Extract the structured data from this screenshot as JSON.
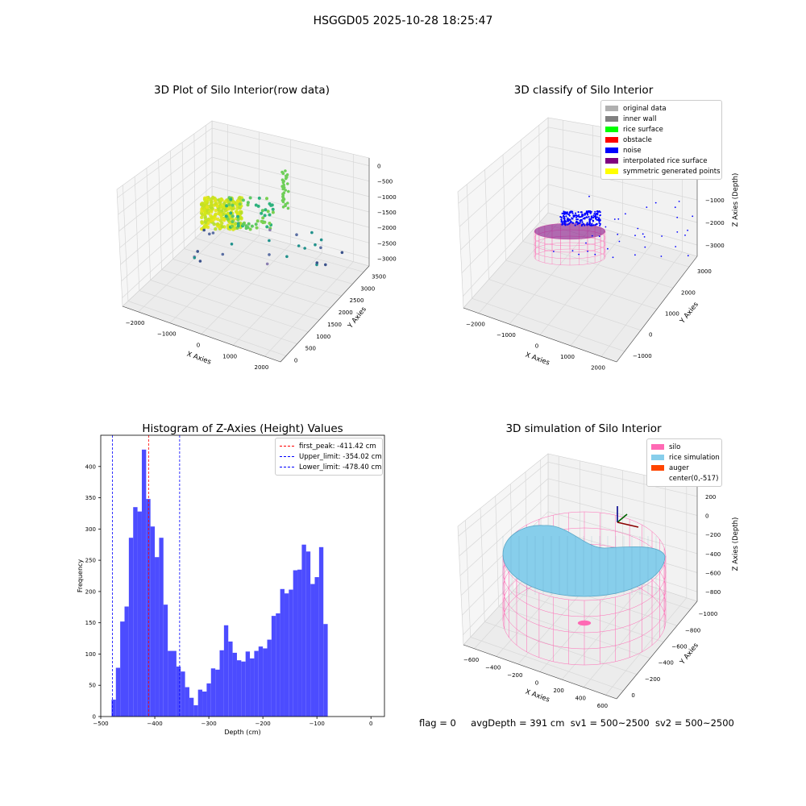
{
  "suptitle": "HSGGD05 2025-10-28 18:25:47",
  "footer": {
    "flag": "flag = 0",
    "avg_depth": "avgDepth = 391 cm",
    "sv1": "sv1 = 500~2500",
    "sv2": "sv2 = 500~2500"
  },
  "colors": {
    "histogram_bar": "#4c4cff",
    "first_peak": "#ff0000",
    "limits": "#0000ff",
    "silo": "#ff69b4",
    "rice": "#87ceeb",
    "auger": "#ff4500"
  },
  "panels": {
    "raw": {
      "title": "3D Plot of Silo Interior(row data)",
      "xlabel": "X Axies",
      "ylabel": "Y Axies",
      "zlabel": "Z Axies (Depth)",
      "xticks": [
        "−2000",
        "−1000",
        "0",
        "1000",
        "2000"
      ],
      "yticks": [
        "0",
        "500",
        "1000",
        "1500",
        "2000",
        "2500",
        "3000",
        "3500"
      ],
      "zticks": [
        "0",
        "−500",
        "−1000",
        "−1500",
        "−2000",
        "−2500",
        "−3000"
      ]
    },
    "classify": {
      "title": "3D classify of Silo Interior",
      "xlabel": "X Axies",
      "ylabel": "Y Axies",
      "zlabel": "Z Axies (Depth)",
      "xticks": [
        "−2000",
        "−1000",
        "0",
        "1000",
        "2000"
      ],
      "yticks": [
        "−1000",
        "0",
        "1000",
        "2000",
        "3000"
      ],
      "zticks": [
        "1000",
        "0",
        "−1000",
        "−2000",
        "−3000"
      ],
      "legend": [
        {
          "label": "original data",
          "color": "#b0b0b0"
        },
        {
          "label": "inner wall",
          "color": "#808080"
        },
        {
          "label": "rice surface",
          "color": "#00ff00"
        },
        {
          "label": "obstacle",
          "color": "#ff0000"
        },
        {
          "label": "noise",
          "color": "#0000ff"
        },
        {
          "label": "interpolated rice surface",
          "color": "#800080"
        },
        {
          "label": "symmetric generated points",
          "color": "#ffff00"
        }
      ]
    },
    "simulation": {
      "title": "3D simulation of Silo Interior",
      "xlabel": "X Axies",
      "ylabel": "Y Axies",
      "zlabel": "Z Axies (Depth)",
      "xticks": [
        "−600",
        "−400",
        "−200",
        "0",
        "200",
        "400",
        "600"
      ],
      "yticks": [
        "0",
        "−200",
        "−400",
        "−600",
        "−800",
        "−1000"
      ],
      "zticks": [
        "200",
        "0",
        "−200",
        "−400",
        "−600",
        "−800"
      ],
      "legend": [
        {
          "label": "silo",
          "color": "#ff69b4"
        },
        {
          "label": "rice simulation",
          "color": "#87ceeb"
        },
        {
          "label": "auger",
          "color": "#ff4500"
        },
        {
          "label": "center(0,-517)",
          "color": ""
        }
      ]
    }
  },
  "chart_data": {
    "type": "bar",
    "title": "Histogram of Z-Axies (Height) Values",
    "xlabel": "Depth (cm)",
    "ylabel": "Frequency",
    "xlim": [
      -500,
      25
    ],
    "ylim": [
      0,
      450
    ],
    "xticks": [
      -500,
      -400,
      -300,
      -200,
      -100,
      0
    ],
    "yticks": [
      0,
      50,
      100,
      150,
      200,
      250,
      300,
      350,
      400
    ],
    "bin_start": -480,
    "bin_width": 8,
    "values": [
      27,
      78,
      152,
      176,
      286,
      335,
      328,
      427,
      348,
      304,
      255,
      286,
      179,
      105,
      105,
      80,
      72,
      47,
      30,
      18,
      43,
      40,
      53,
      77,
      75,
      106,
      146,
      120,
      102,
      90,
      88,
      104,
      93,
      105,
      112,
      109,
      123,
      161,
      165,
      204,
      197,
      203,
      234,
      235,
      275,
      264,
      212,
      223,
      271,
      148
    ],
    "lines": [
      {
        "label": "first_peak: -411.42 cm",
        "x": -411.42,
        "color": "#ff0000"
      },
      {
        "label": "Upper_limit: -354.02 cm",
        "x": -354.02,
        "color": "#0000ff"
      },
      {
        "label": "Lower_limit: -478.40 cm",
        "x": -478.4,
        "color": "#0000ff"
      }
    ]
  }
}
